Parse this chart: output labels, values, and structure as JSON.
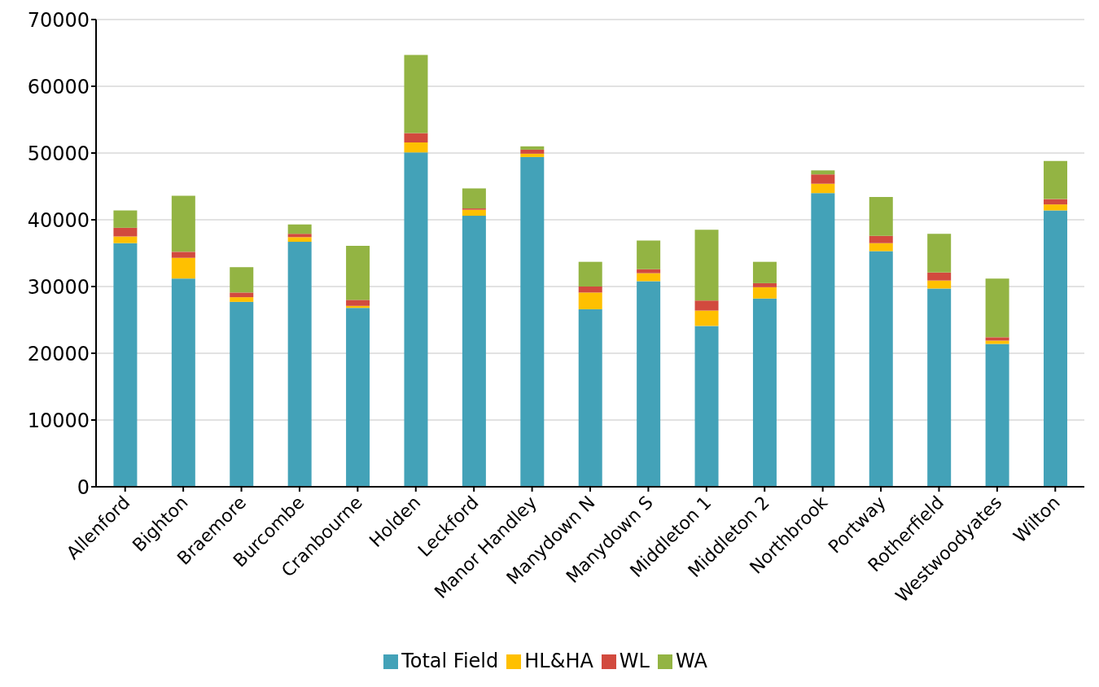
{
  "chart_data": {
    "type": "bar",
    "stacked": true,
    "categories": [
      "Allenford",
      "Bighton",
      "Braemore",
      "Burcombe",
      "Cranbourne",
      "Holden",
      "Leckford",
      "Manor Handley",
      "Manydown N",
      "Manydown S",
      "Middleton 1",
      "Middleton 2",
      "Northbrook",
      "Portway",
      "Rotherfield",
      "Westwoodyates",
      "Wilton"
    ],
    "series": [
      {
        "name": "Total Field",
        "color": "#43a2b8",
        "values": [
          36500,
          31200,
          27700,
          36700,
          26800,
          50100,
          40600,
          49400,
          26600,
          30800,
          24100,
          28200,
          44000,
          35300,
          29700,
          21400,
          41400
        ]
      },
      {
        "name": "HL&HA",
        "color": "#ffc000",
        "values": [
          1000,
          3100,
          700,
          700,
          300,
          1500,
          900,
          500,
          2500,
          1200,
          2300,
          1700,
          1400,
          1200,
          1200,
          500,
          900
        ]
      },
      {
        "name": "WL",
        "color": "#d24a3e",
        "values": [
          1300,
          900,
          700,
          500,
          900,
          1400,
          200,
          600,
          900,
          600,
          1500,
          600,
          1400,
          1100,
          1200,
          500,
          800
        ]
      },
      {
        "name": "WA",
        "color": "#93b443",
        "values": [
          2600,
          8400,
          3800,
          1400,
          8100,
          11700,
          3000,
          500,
          3700,
          4300,
          10600,
          3200,
          600,
          5800,
          5800,
          8800,
          5700
        ]
      }
    ],
    "ylim": [
      0,
      70000
    ],
    "yticks": [
      0,
      10000,
      20000,
      30000,
      40000,
      50000,
      60000,
      70000
    ],
    "grid": "y",
    "legend": "bottom"
  }
}
